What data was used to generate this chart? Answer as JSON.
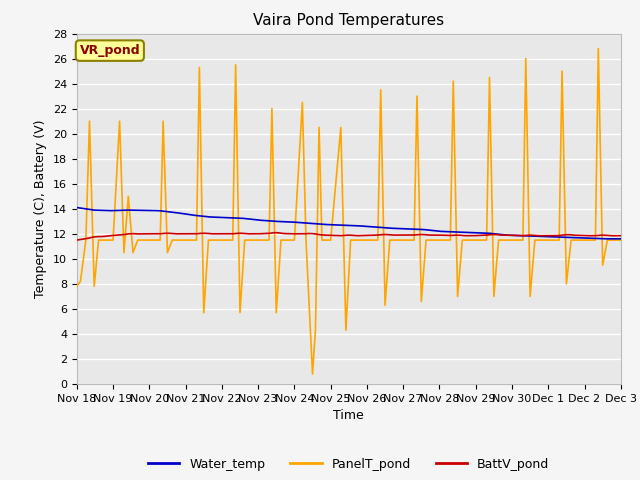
{
  "title": "Vaira Pond Temperatures",
  "xlabel": "Time",
  "ylabel": "Temperature (C), Battery (V)",
  "annotation": "VR_pond",
  "ylim": [
    0,
    28
  ],
  "yticks": [
    0,
    2,
    4,
    6,
    8,
    10,
    12,
    14,
    16,
    18,
    20,
    22,
    24,
    26,
    28
  ],
  "x_tick_labels": [
    "Nov 18",
    "Nov 19",
    "Nov 20",
    "Nov 21",
    "Nov 22",
    "Nov 23",
    "Nov 24",
    "Nov 25",
    "Nov 26",
    "Nov 27",
    "Nov 28",
    "Nov 29",
    "Nov 30",
    "Dec 1",
    "Dec 2",
    "Dec 3"
  ],
  "plot_bg_color": "#e8e8e8",
  "fig_bg_color": "#f5f5f5",
  "water_temp_color": "#0000cc",
  "panel_temp_color": "#FFA500",
  "batt_color": "#cc0000",
  "legend_entries": [
    "Water_temp",
    "PanelT_pond",
    "BattV_pond"
  ],
  "n_days": 15,
  "water_temp_pts": [
    14.1,
    13.9,
    13.85,
    13.9,
    13.88,
    13.85,
    13.7,
    13.5,
    13.35,
    13.3,
    13.25,
    13.1,
    13.0,
    12.95,
    12.85,
    12.75,
    12.7,
    12.65,
    12.55,
    12.45,
    12.4,
    12.35,
    12.2,
    12.15,
    12.1,
    12.05,
    11.9,
    11.85,
    11.8,
    11.75,
    11.7,
    11.65,
    11.6,
    11.6
  ],
  "days_peaks": [
    21.0,
    22.2,
    21.0,
    25.3,
    25.5,
    22.0,
    22.5,
    20.5,
    23.5,
    23.0,
    24.2,
    24.5,
    26.0,
    25.0,
    26.8
  ],
  "days_mins": [
    7.8,
    10.5,
    10.5,
    5.7,
    5.7,
    5.7,
    5.5,
    4.3,
    6.3,
    6.6,
    7.0,
    7.0,
    7.0,
    8.0,
    9.5
  ],
  "nov24_dip": 0.8,
  "batt_base_pts": [
    11.5,
    11.7,
    11.85,
    11.95,
    12.0,
    12.0,
    12.0,
    12.0,
    12.0,
    12.0,
    12.0,
    12.0,
    12.05,
    12.0,
    12.0,
    11.9,
    11.85,
    11.85,
    11.9,
    11.9,
    11.9,
    11.9,
    11.9,
    11.85,
    11.85,
    11.9,
    11.9,
    11.85,
    11.85,
    11.85,
    11.9,
    11.85,
    11.85,
    11.85
  ],
  "batt_zigzag_amp": 0.15,
  "grid_color": "white",
  "grid_lw": 1.0,
  "line_lw": 1.2,
  "title_fontsize": 11,
  "axis_label_fontsize": 9,
  "tick_fontsize": 8
}
